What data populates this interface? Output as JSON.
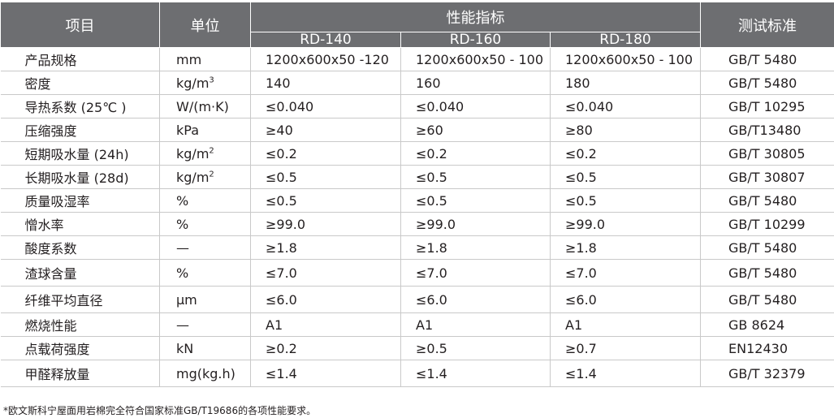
{
  "header": {
    "item": "项目",
    "unit": "单位",
    "performance": "性能指标",
    "standard": "测试标准",
    "grades": [
      "RD-140",
      "RD-160",
      "RD-180"
    ]
  },
  "rows": [
    {
      "name": "产品规格",
      "unit": "mm",
      "unit_sup": "",
      "v1": "1200x600x50 -120",
      "v2": "1200x600x50 - 100",
      "v3": "1200x600x50 - 100",
      "std": "GB/T 5480"
    },
    {
      "name": "密度",
      "unit": "kg/m",
      "unit_sup": "3",
      "v1": "140",
      "v2": "160",
      "v3": "180",
      "std": "GB/T 5480"
    },
    {
      "name": "导热系数 (25℃ )",
      "unit": "W/(m·K)",
      "unit_sup": "",
      "v1": "≤0.040",
      "v2": "≤0.040",
      "v3": "≤0.040",
      "std": "GB/T 10295"
    },
    {
      "name": "压缩强度",
      "unit": "kPa",
      "unit_sup": "",
      "v1": "≥40",
      "v2": "≥60",
      "v3": "≥80",
      "std": "GB/T13480"
    },
    {
      "name": "短期吸水量 (24h)",
      "unit": "kg/m",
      "unit_sup": "2",
      "v1": "≤0.2",
      "v2": "≤0.2",
      "v3": "≤0.2",
      "std": "GB/T 30805"
    },
    {
      "name": "长期吸水量 (28d)",
      "unit": "kg/m",
      "unit_sup": "2",
      "v1": "≤0.5",
      "v2": "≤0.5",
      "v3": "≤0.5",
      "std": "GB/T 30807"
    },
    {
      "name": "质量吸湿率",
      "unit": "%",
      "unit_sup": "",
      "v1": "≤0.5",
      "v2": "≤0.5",
      "v3": "≤0.5",
      "std": "GB/T 5480"
    },
    {
      "name": "憎水率",
      "unit": " %",
      "unit_sup": "",
      "v1": "≥99.0",
      "v2": "≥99.0",
      "v3": "≥99.0",
      "std": "GB/T 10299"
    },
    {
      "name": "酸度系数",
      "unit": "—",
      "unit_sup": "",
      "v1": "≥1.8",
      "v2": "≥1.8",
      "v3": "≥1.8",
      "std": "GB/T 5480"
    },
    {
      "name": "渣球含量",
      "unit": "%",
      "unit_sup": "",
      "v1": "≤7.0",
      "v2": "≤7.0",
      "v3": "≤7.0",
      "std": "GB/T 5480"
    },
    {
      "name": "纤维平均直径",
      "unit": "μm",
      "unit_sup": "",
      "v1": "≤6.0",
      "v2": "≤6.0",
      "v3": "≤6.0",
      "std": "GB/T 5480"
    },
    {
      "name": "燃烧性能",
      "unit": "—",
      "unit_sup": "",
      "v1": "A1",
      "v2": "A1",
      "v3": "A1",
      "std": "GB 8624"
    },
    {
      "name": "点载荷强度",
      "unit": "kN",
      "unit_sup": "",
      "v1": "≥0.2",
      "v2": "≥0.5",
      "v3": "≥0.7",
      "std": "EN12430"
    },
    {
      "name": "甲醛释放量",
      "unit": "mg(kg.h)",
      "unit_sup": "",
      "v1": "≤1.4",
      "v2": "≤1.4",
      "v3": "≤1.4",
      "std": "GB/T 32379"
    }
  ],
  "footnote": "*欧文斯科宁屋面用岩棉完全符合国家标准GB/T19686的各项性能要求。",
  "colors": {
    "header_bg": "#6d6e71",
    "header_text": "#ffffff",
    "grid_line": "#c9c9c9"
  }
}
